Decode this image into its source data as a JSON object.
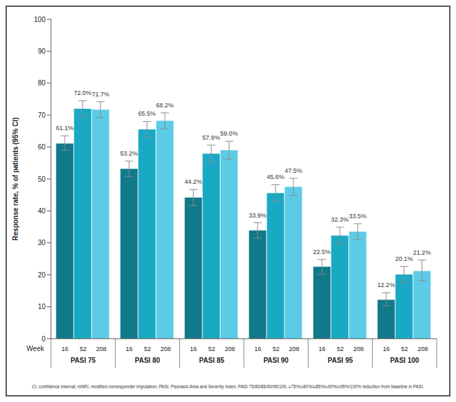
{
  "chart_data": {
    "type": "bar",
    "y_label": "Response rate, % of patients (95% CI)",
    "x_label": "Week",
    "footnote": "CI, confidence interval; mNRI, modified nonresponder imputation; PASI, Psoriasis Area and Severity Index; PASI 75/80/85/90/95/100, ≥75%/≥80%/≥85%/≥90%/≥95%/100% reduction from baseline in PASI.",
    "categories": [
      "PASI 75",
      "PASI 80",
      "PASI 85",
      "PASI 90",
      "PASI 95",
      "PASI 100"
    ],
    "series": [
      {
        "name": "16",
        "color": "#10798a",
        "values": [
          61.1,
          53.2,
          44.2,
          33.9,
          22.5,
          12.2
        ],
        "value_labels": [
          "61.1%",
          "53.2%",
          "44.2%",
          "33.9%",
          "22.5%",
          "12.2%"
        ],
        "ci": [
          [
            59.0,
            63.5
          ],
          [
            50.8,
            55.6
          ],
          [
            41.7,
            46.7
          ],
          [
            31.5,
            36.3
          ],
          [
            20.2,
            24.8
          ],
          [
            10.3,
            14.4
          ]
        ]
      },
      {
        "name": "52",
        "color": "#1aa9c4",
        "values": [
          72.0,
          65.5,
          57.9,
          45.6,
          32.3,
          20.1
        ],
        "value_labels": [
          "72.0%",
          "65.5%",
          "57.9%",
          "45.6%",
          "32.3%",
          "20.1%"
        ],
        "ci": [
          [
            69.5,
            74.5
          ],
          [
            63.0,
            68.0
          ],
          [
            55.2,
            60.6
          ],
          [
            43.0,
            48.2
          ],
          [
            29.7,
            34.9
          ],
          [
            17.6,
            22.6
          ]
        ]
      },
      {
        "name": "208",
        "color": "#5ccbe5",
        "values": [
          71.7,
          68.2,
          59.0,
          47.5,
          33.5,
          21.2
        ],
        "value_labels": [
          "71.7%",
          "68.2%",
          "59.0%",
          "47.5%",
          "33.5%",
          "21.2%"
        ],
        "ci": [
          [
            69.2,
            74.2
          ],
          [
            65.7,
            70.7
          ],
          [
            56.2,
            61.8
          ],
          [
            44.8,
            50.2
          ],
          [
            31.0,
            36.0
          ],
          [
            18.2,
            24.6
          ]
        ]
      }
    ],
    "ylim": [
      0,
      100
    ],
    "yticks": [
      0,
      10,
      20,
      30,
      40,
      50,
      60,
      70,
      80,
      90,
      100
    ],
    "grid": false,
    "data_labels": true
  }
}
